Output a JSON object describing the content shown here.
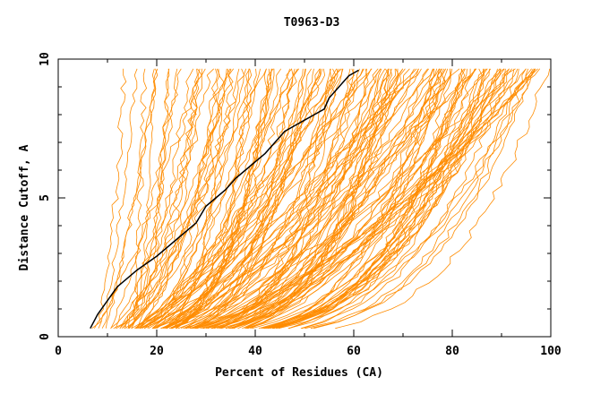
{
  "chart_data": {
    "type": "line",
    "title": "T0963-D3",
    "xlabel": "Percent of Residues (CA)",
    "ylabel": "Distance Cutoff, A",
    "xlim": [
      0,
      100
    ],
    "ylim": [
      0,
      10
    ],
    "x_ticks": [
      0,
      20,
      40,
      60,
      80,
      100
    ],
    "y_ticks": [
      0,
      5,
      10
    ],
    "x_tick_labels": [
      "0",
      "20",
      "40",
      "60",
      "80",
      "100"
    ],
    "y_tick_labels": [
      "0",
      "5",
      "10"
    ],
    "colors": {
      "background_series": "#ff8c00",
      "highlight": "#000000",
      "axes": "#000000"
    },
    "background_series_count": 160,
    "highlight_series": {
      "name": "T0963-D3",
      "x": [
        6.5,
        8,
        10,
        12,
        14,
        16,
        18,
        20,
        22,
        24,
        26,
        28,
        29,
        30,
        32,
        34,
        36,
        38,
        40,
        42,
        44,
        46,
        48,
        50,
        52,
        54,
        55,
        57,
        59,
        61
      ],
      "y": [
        0.3,
        0.8,
        1.3,
        1.8,
        2.1,
        2.4,
        2.65,
        2.9,
        3.2,
        3.5,
        3.8,
        4.1,
        4.4,
        4.7,
        5.0,
        5.3,
        5.7,
        6.0,
        6.3,
        6.6,
        7.0,
        7.4,
        7.6,
        7.8,
        8.0,
        8.2,
        8.6,
        9.0,
        9.4,
        9.6
      ]
    }
  }
}
